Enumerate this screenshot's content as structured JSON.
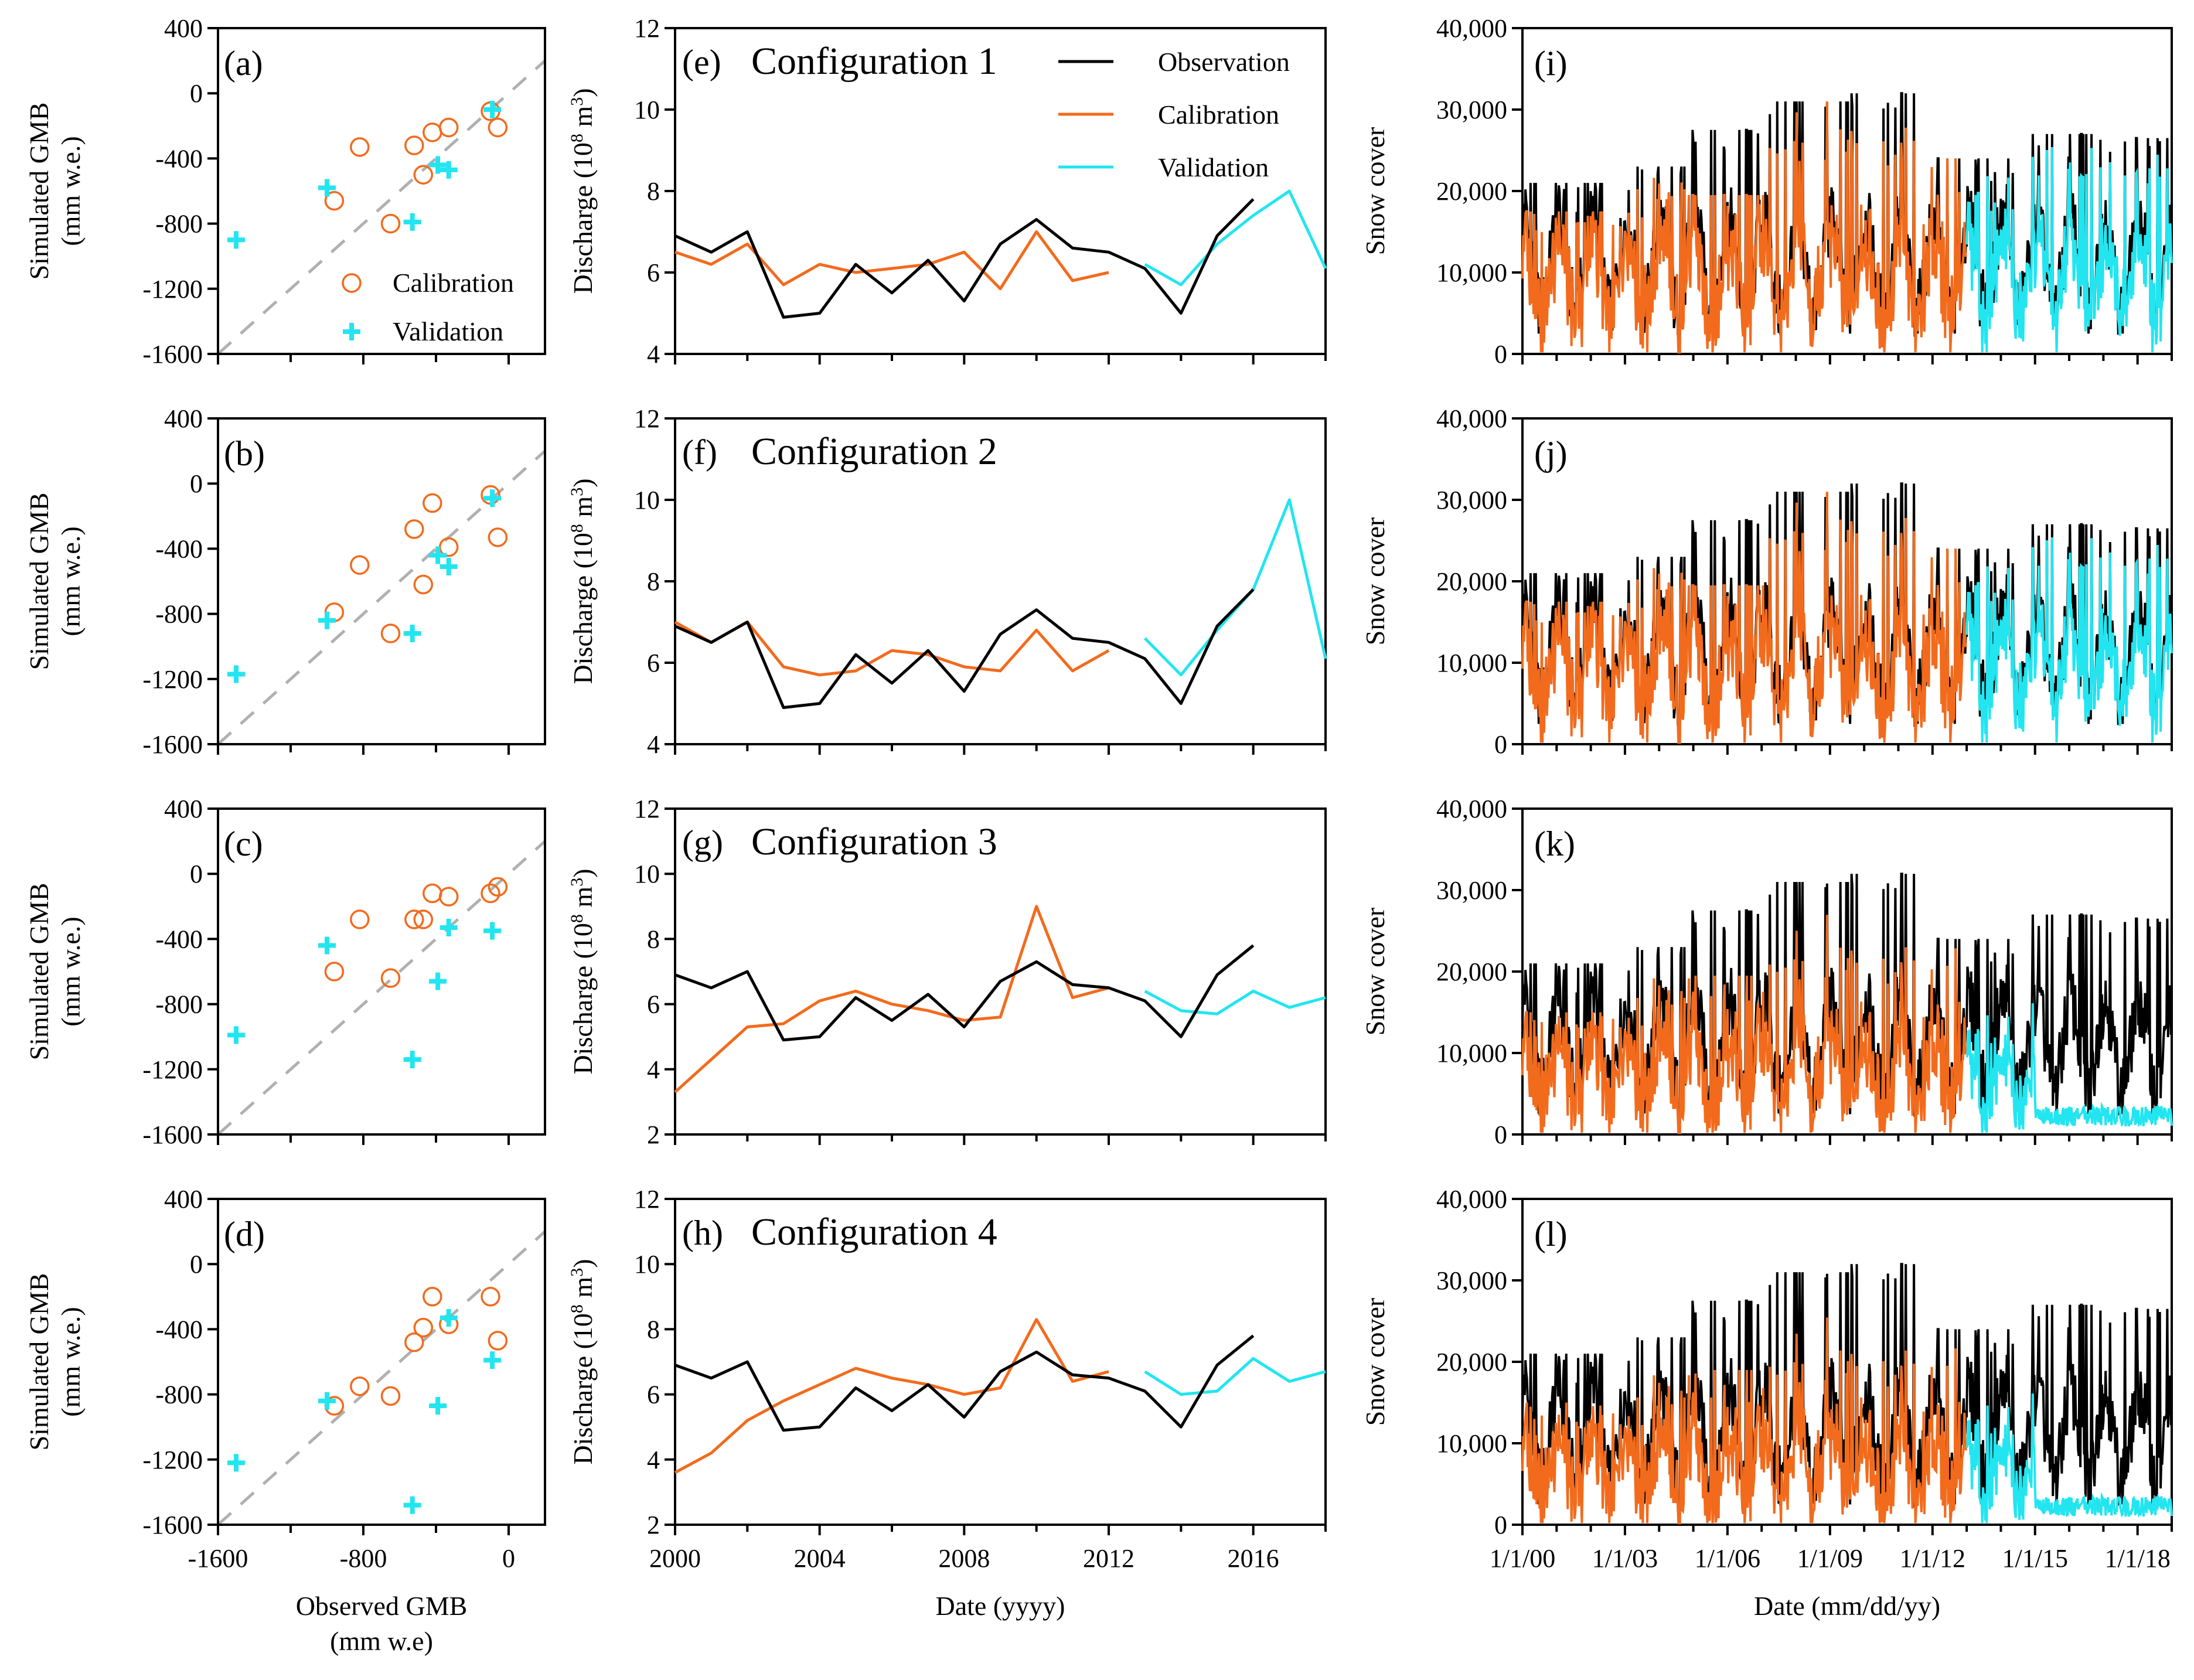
{
  "colors": {
    "observation": "#000000",
    "calibration": "#f26b1d",
    "validation": "#22e5f0",
    "one_to_one": "#b0b0b0"
  },
  "labels": {
    "gmb_ylabel_1": "Simulated GMB",
    "gmb_ylabel_2": "(mm w.e.)",
    "gmb_xlabel_1": "Observed GMB",
    "gmb_xlabel_2": "(mm w.e)",
    "discharge_ylabel": "Discharge (10",
    "discharge_ylabel_exp": "8",
    "discharge_ylabel_unit": " m",
    "discharge_ylabel_exp2": "3",
    "discharge_ylabel_end": ")",
    "discharge_xlabel": "Date (yyyy)",
    "snow_ylabel": "Snow cover",
    "snow_xlabel": "Date (mm/dd/yy)"
  },
  "legend": {
    "gmb": [
      "Calibration",
      "Validation"
    ],
    "discharge": [
      "Observation",
      "Calibration",
      "Validation"
    ]
  },
  "chart_data": [
    {
      "type": "scatter",
      "panel": "(a)",
      "xlabel": "Observed GMB (mm w.e)",
      "ylabel": "Simulated GMB (mm w.e.)",
      "xlim": [
        -1600,
        200
      ],
      "ylim": [
        -1600,
        400
      ],
      "xticks": [
        "-1600",
        "-800",
        "0"
      ],
      "yticks": [
        "400",
        "0",
        "-400",
        "-800",
        "-1200",
        "-1600"
      ],
      "series": [
        {
          "name": "Calibration",
          "points": [
            [
              -960,
              -660
            ],
            [
              -820,
              -330
            ],
            [
              -650,
              -800
            ],
            [
              -520,
              -320
            ],
            [
              -470,
              -500
            ],
            [
              -420,
              -240
            ],
            [
              -330,
              -210
            ],
            [
              -100,
              -110
            ],
            [
              -60,
              -210
            ]
          ]
        },
        {
          "name": "Validation",
          "points": [
            [
              -1500,
              -900
            ],
            [
              -1000,
              -580
            ],
            [
              -530,
              -790
            ],
            [
              -390,
              -440
            ],
            [
              -330,
              -470
            ],
            [
              -90,
              -100
            ]
          ]
        }
      ]
    },
    {
      "type": "scatter",
      "panel": "(b)",
      "xlim": [
        -1600,
        200
      ],
      "ylim": [
        -1600,
        400
      ],
      "xticks": [
        "-1600",
        "-800",
        "0"
      ],
      "yticks": [
        "400",
        "0",
        "-400",
        "-800",
        "-1200",
        "-1600"
      ],
      "series": [
        {
          "name": "Calibration",
          "points": [
            [
              -960,
              -790
            ],
            [
              -820,
              -500
            ],
            [
              -650,
              -920
            ],
            [
              -520,
              -280
            ],
            [
              -470,
              -620
            ],
            [
              -420,
              -120
            ],
            [
              -330,
              -390
            ],
            [
              -100,
              -70
            ],
            [
              -60,
              -330
            ]
          ]
        },
        {
          "name": "Validation",
          "points": [
            [
              -1500,
              -1170
            ],
            [
              -1000,
              -840
            ],
            [
              -530,
              -920
            ],
            [
              -390,
              -440
            ],
            [
              -330,
              -510
            ],
            [
              -90,
              -90
            ]
          ]
        }
      ]
    },
    {
      "type": "scatter",
      "panel": "(c)",
      "xlim": [
        -1600,
        200
      ],
      "ylim": [
        -1600,
        400
      ],
      "xticks": [
        "-1600",
        "-800",
        "0"
      ],
      "yticks": [
        "400",
        "0",
        "-400",
        "-800",
        "-1200",
        "-1600"
      ],
      "series": [
        {
          "name": "Calibration",
          "points": [
            [
              -960,
              -600
            ],
            [
              -820,
              -280
            ],
            [
              -650,
              -640
            ],
            [
              -520,
              -280
            ],
            [
              -470,
              -280
            ],
            [
              -420,
              -120
            ],
            [
              -330,
              -140
            ],
            [
              -100,
              -120
            ],
            [
              -60,
              -80
            ]
          ]
        },
        {
          "name": "Validation",
          "points": [
            [
              -1500,
              -990
            ],
            [
              -1000,
              -440
            ],
            [
              -530,
              -1140
            ],
            [
              -390,
              -660
            ],
            [
              -330,
              -330
            ],
            [
              -90,
              -350
            ]
          ]
        }
      ]
    },
    {
      "type": "scatter",
      "panel": "(d)",
      "xlim": [
        -1600,
        200
      ],
      "ylim": [
        -1600,
        400
      ],
      "xticks": [
        "-1600",
        "-800",
        "0"
      ],
      "yticks": [
        "400",
        "0",
        "-400",
        "-800",
        "-1200",
        "-1600"
      ],
      "series": [
        {
          "name": "Calibration",
          "points": [
            [
              -960,
              -870
            ],
            [
              -820,
              -750
            ],
            [
              -650,
              -810
            ],
            [
              -520,
              -480
            ],
            [
              -470,
              -390
            ],
            [
              -420,
              -200
            ],
            [
              -330,
              -370
            ],
            [
              -100,
              -200
            ],
            [
              -60,
              -470
            ]
          ]
        },
        {
          "name": "Validation",
          "points": [
            [
              -1500,
              -1220
            ],
            [
              -1000,
              -840
            ],
            [
              -530,
              -1480
            ],
            [
              -390,
              -870
            ],
            [
              -330,
              -330
            ],
            [
              -90,
              -590
            ]
          ]
        }
      ]
    },
    {
      "type": "line",
      "panel": "(e)",
      "title": "Configuration 1",
      "ylim": [
        4,
        12
      ],
      "xlim": [
        2000,
        2018
      ],
      "yticks": [
        "12",
        "10",
        "8",
        "6",
        "4"
      ],
      "xticks": [
        "2000",
        "2004",
        "2008",
        "2012",
        "2016"
      ],
      "series": [
        {
          "name": "Observation",
          "x": [
            2000,
            2001,
            2002,
            2003,
            2004,
            2005,
            2006,
            2007,
            2008,
            2009,
            2010,
            2011,
            2012,
            2013,
            2014,
            2015,
            2016
          ],
          "values": [
            6.9,
            6.5,
            7.0,
            4.9,
            5.0,
            6.2,
            5.5,
            6.3,
            5.3,
            6.7,
            7.3,
            6.6,
            6.5,
            6.1,
            5.0,
            6.9,
            7.8
          ]
        },
        {
          "name": "Calibration",
          "x": [
            2000,
            2001,
            2002,
            2003,
            2004,
            2005,
            2006,
            2007,
            2008,
            2009,
            2010,
            2011,
            2012
          ],
          "values": [
            6.5,
            6.2,
            6.7,
            5.7,
            6.2,
            6.0,
            6.1,
            6.2,
            6.5,
            5.6,
            7.0,
            5.8,
            6.0
          ]
        },
        {
          "name": "Validation",
          "x": [
            2013,
            2014,
            2015,
            2016,
            2017,
            2018
          ],
          "values": [
            6.2,
            5.7,
            6.7,
            7.4,
            8.0,
            6.1
          ]
        }
      ]
    },
    {
      "type": "line",
      "panel": "(f)",
      "title": "Configuration 2",
      "ylim": [
        4,
        12
      ],
      "xlim": [
        2000,
        2018
      ],
      "yticks": [
        "12",
        "10",
        "8",
        "6",
        "4"
      ],
      "xticks": [
        "2000",
        "2004",
        "2008",
        "2012",
        "2016"
      ],
      "series": [
        {
          "name": "Observation",
          "x": [
            2000,
            2001,
            2002,
            2003,
            2004,
            2005,
            2006,
            2007,
            2008,
            2009,
            2010,
            2011,
            2012,
            2013,
            2014,
            2015,
            2016
          ],
          "values": [
            6.9,
            6.5,
            7.0,
            4.9,
            5.0,
            6.2,
            5.5,
            6.3,
            5.3,
            6.7,
            7.3,
            6.6,
            6.5,
            6.1,
            5.0,
            6.9,
            7.8
          ]
        },
        {
          "name": "Calibration",
          "x": [
            2000,
            2001,
            2002,
            2003,
            2004,
            2005,
            2006,
            2007,
            2008,
            2009,
            2010,
            2011,
            2012
          ],
          "values": [
            7.0,
            6.5,
            7.0,
            5.9,
            5.7,
            5.8,
            6.3,
            6.2,
            5.9,
            5.8,
            6.8,
            5.8,
            6.3
          ]
        },
        {
          "name": "Validation",
          "x": [
            2013,
            2014,
            2015,
            2016,
            2017,
            2018
          ],
          "values": [
            6.6,
            5.7,
            6.8,
            7.8,
            10.0,
            6.1
          ]
        }
      ]
    },
    {
      "type": "line",
      "panel": "(g)",
      "title": "Configuration 3",
      "ylim": [
        2,
        12
      ],
      "xlim": [
        2000,
        2018
      ],
      "yticks": [
        "12",
        "10",
        "8",
        "6",
        "4",
        "2"
      ],
      "xticks": [
        "2000",
        "2004",
        "2008",
        "2012",
        "2016"
      ],
      "series": [
        {
          "name": "Observation",
          "x": [
            2000,
            2001,
            2002,
            2003,
            2004,
            2005,
            2006,
            2007,
            2008,
            2009,
            2010,
            2011,
            2012,
            2013,
            2014,
            2015,
            2016
          ],
          "values": [
            6.9,
            6.5,
            7.0,
            4.9,
            5.0,
            6.2,
            5.5,
            6.3,
            5.3,
            6.7,
            7.3,
            6.6,
            6.5,
            6.1,
            5.0,
            6.9,
            7.8
          ]
        },
        {
          "name": "Calibration",
          "x": [
            2000,
            2001,
            2002,
            2003,
            2004,
            2005,
            2006,
            2007,
            2008,
            2009,
            2010,
            2011,
            2012
          ],
          "values": [
            3.3,
            4.3,
            5.3,
            5.4,
            6.1,
            6.4,
            6.0,
            5.8,
            5.5,
            5.6,
            9.0,
            6.2,
            6.5
          ]
        },
        {
          "name": "Validation",
          "x": [
            2013,
            2014,
            2015,
            2016,
            2017,
            2018
          ],
          "values": [
            6.4,
            5.8,
            5.7,
            6.4,
            5.9,
            6.2
          ]
        }
      ]
    },
    {
      "type": "line",
      "panel": "(h)",
      "title": "Configuration 4",
      "ylim": [
        2,
        12
      ],
      "xlim": [
        2000,
        2018
      ],
      "yticks": [
        "12",
        "10",
        "8",
        "6",
        "4",
        "2"
      ],
      "xticks": [
        "2000",
        "2004",
        "2008",
        "2012",
        "2016"
      ],
      "series": [
        {
          "name": "Observation",
          "x": [
            2000,
            2001,
            2002,
            2003,
            2004,
            2005,
            2006,
            2007,
            2008,
            2009,
            2010,
            2011,
            2012,
            2013,
            2014,
            2015,
            2016
          ],
          "values": [
            6.9,
            6.5,
            7.0,
            4.9,
            5.0,
            6.2,
            5.5,
            6.3,
            5.3,
            6.7,
            7.3,
            6.6,
            6.5,
            6.1,
            5.0,
            6.9,
            7.8
          ]
        },
        {
          "name": "Calibration",
          "x": [
            2000,
            2001,
            2002,
            2003,
            2004,
            2005,
            2006,
            2007,
            2008,
            2009,
            2010,
            2011,
            2012
          ],
          "values": [
            3.6,
            4.2,
            5.2,
            5.8,
            6.3,
            6.8,
            6.5,
            6.3,
            6.0,
            6.2,
            8.3,
            6.4,
            6.7
          ]
        },
        {
          "name": "Validation",
          "x": [
            2013,
            2014,
            2015,
            2016,
            2017,
            2018
          ],
          "values": [
            6.7,
            6.0,
            6.1,
            7.1,
            6.4,
            6.7
          ]
        }
      ]
    },
    {
      "type": "line",
      "panel": "(i)",
      "ylim": [
        0,
        40000
      ],
      "xlim": [
        2000,
        2019
      ],
      "yticks": [
        "40,000",
        "30,000",
        "20,000",
        "10,000",
        "0"
      ],
      "xticks": [
        "1/1/00",
        "1/1/03",
        "1/1/06",
        "1/1/09",
        "1/1/12",
        "1/1/15",
        "1/1/18"
      ],
      "calibration_end": 2013,
      "obs_peaks": [
        21000,
        23000,
        27500,
        31000,
        32000,
        24000,
        27000,
        26500
      ],
      "sim_peaks": [
        17500,
        24500,
        19500,
        31000,
        30500,
        24000,
        26000,
        25500
      ],
      "sim_bias": 0.85,
      "late_val_scale": 1.0
    },
    {
      "type": "line",
      "panel": "(j)",
      "ylim": [
        0,
        40000
      ],
      "xlim": [
        2000,
        2019
      ],
      "yticks": [
        "40,000",
        "30,000",
        "20,000",
        "10,000",
        "0"
      ],
      "xticks": [
        "1/1/00",
        "1/1/03",
        "1/1/06",
        "1/1/09",
        "1/1/12",
        "1/1/15",
        "1/1/18"
      ],
      "calibration_end": 2013,
      "obs_peaks": [
        21000,
        23000,
        27500,
        31000,
        32000,
        24000,
        27000,
        26500
      ],
      "sim_peaks": [
        17500,
        24500,
        19500,
        31000,
        30500,
        24000,
        26000,
        25500
      ],
      "sim_bias": 0.85,
      "late_val_scale": 1.0
    },
    {
      "type": "line",
      "panel": "(k)",
      "ylim": [
        0,
        40000
      ],
      "xlim": [
        2000,
        2019
      ],
      "yticks": [
        "40,000",
        "30,000",
        "20,000",
        "10,000",
        "0"
      ],
      "xticks": [
        "1/1/00",
        "1/1/03",
        "1/1/06",
        "1/1/09",
        "1/1/12",
        "1/1/15",
        "1/1/18"
      ],
      "calibration_end": 2013,
      "obs_peaks": [
        21000,
        23000,
        27500,
        31000,
        32000,
        24000,
        27000,
        26500
      ],
      "sim_peaks": [
        15000,
        21000,
        19500,
        29000,
        29000,
        27000,
        8000,
        3000
      ],
      "sim_bias": 0.7,
      "late_val_scale": 0.12
    },
    {
      "type": "line",
      "panel": "(l)",
      "ylim": [
        0,
        40000
      ],
      "xlim": [
        2000,
        2019
      ],
      "yticks": [
        "40,000",
        "30,000",
        "20,000",
        "10,000",
        "0"
      ],
      "xticks": [
        "1/1/00",
        "1/1/03",
        "1/1/06",
        "1/1/09",
        "1/1/12",
        "1/1/15",
        "1/1/18"
      ],
      "calibration_end": 2013,
      "obs_peaks": [
        21000,
        23000,
        27500,
        31000,
        32000,
        24000,
        27000,
        26500
      ],
      "sim_peaks": [
        15000,
        20000,
        19000,
        28000,
        29000,
        27000,
        8000,
        3000
      ],
      "sim_bias": 0.65,
      "late_val_scale": 0.1
    }
  ]
}
